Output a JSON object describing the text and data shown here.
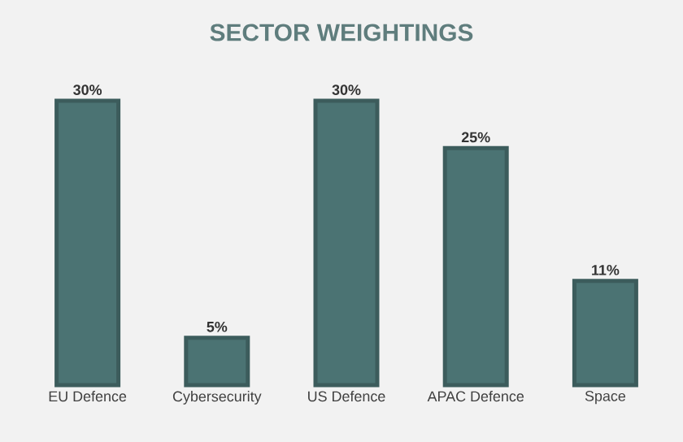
{
  "chart_data": {
    "type": "bar",
    "title": "SECTOR WEIGHTINGS",
    "categories": [
      "EU Defence",
      "Cybersecurity",
      "US Defence",
      "APAC Defence",
      "Space"
    ],
    "values": [
      30,
      5,
      30,
      25,
      11
    ],
    "value_labels": [
      "30%",
      "5%",
      "30%",
      "25%",
      "11%"
    ],
    "color": "#4b7373"
  }
}
